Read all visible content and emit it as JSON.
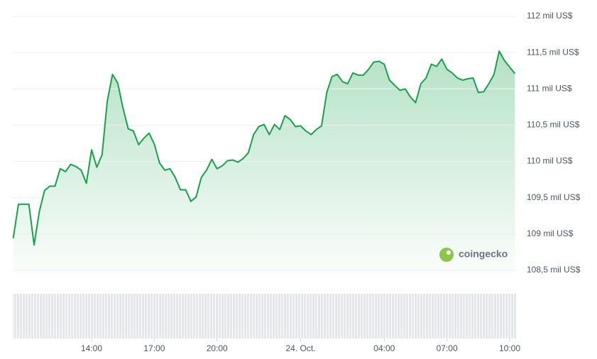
{
  "chart_data": {
    "type": "line",
    "series": [
      {
        "color": "#16a34a",
        "x": [
          10.25,
          10.5,
          10.75,
          11,
          11.25,
          11.5,
          11.75,
          12,
          12.25,
          12.5,
          12.75,
          13,
          13.25,
          13.5,
          13.75,
          14,
          14.25,
          14.5,
          14.75,
          15,
          15.25,
          15.5,
          15.75,
          16,
          16.25,
          16.5,
          16.75,
          17,
          17.25,
          17.5,
          17.75,
          18,
          18.25,
          18.5,
          18.75,
          19,
          19.25,
          19.5,
          19.75,
          20,
          20.25,
          20.5,
          20.75,
          21,
          21.25,
          21.5,
          21.75,
          22,
          22.25,
          22.5,
          22.75,
          23,
          23.25,
          23.5,
          23.75,
          24,
          24.25,
          24.5,
          24.75,
          25,
          25.25,
          25.5,
          25.75,
          26,
          26.25,
          26.5,
          26.75,
          27,
          27.25,
          27.5,
          27.75,
          28,
          28.25,
          28.5,
          28.75,
          29,
          29.25,
          29.5,
          29.75,
          30,
          30.25,
          30.5,
          30.75,
          31,
          31.25,
          31.5,
          31.75,
          32,
          32.25,
          32.5,
          32.75,
          33,
          33.25,
          33.5,
          33.75,
          34,
          34.25
        ],
        "values": [
          108.94,
          109.41,
          109.41,
          109.41,
          108.85,
          109.31,
          109.6,
          109.66,
          109.66,
          109.9,
          109.86,
          109.96,
          109.93,
          109.88,
          109.7,
          110.16,
          109.92,
          110.09,
          110.83,
          111.2,
          111.08,
          110.74,
          110.45,
          110.42,
          110.23,
          110.32,
          110.39,
          110.24,
          109.98,
          109.88,
          109.9,
          109.78,
          109.61,
          109.61,
          109.45,
          109.51,
          109.78,
          109.88,
          110.03,
          109.9,
          109.94,
          110.01,
          110.02,
          109.99,
          110.04,
          110.12,
          110.37,
          110.48,
          110.51,
          110.37,
          110.51,
          110.44,
          110.63,
          110.58,
          110.48,
          110.49,
          110.42,
          110.37,
          110.44,
          110.49,
          110.95,
          111.17,
          111.2,
          111.1,
          111.07,
          111.22,
          111.19,
          111.19,
          111.27,
          111.37,
          111.38,
          111.34,
          111.12,
          111.05,
          110.98,
          111,
          110.89,
          110.81,
          111.07,
          111.15,
          111.34,
          111.31,
          111.41,
          111.27,
          111.22,
          111.15,
          111.12,
          111.14,
          111.15,
          110.95,
          110.96,
          111.07,
          111.2,
          111.52,
          111.39,
          111.3,
          111.21
        ]
      }
    ],
    "xlim": [
      10.23,
      34.34
    ],
    "xticks": [
      {
        "value": 14,
        "label": "14:00"
      },
      {
        "value": 17,
        "label": "17:00"
      },
      {
        "value": 20,
        "label": "20:00"
      },
      {
        "value": 24,
        "label": "24. Oct."
      },
      {
        "value": 28,
        "label": "04:00"
      },
      {
        "value": 31,
        "label": "07:00"
      },
      {
        "value": 34,
        "label": "10:00"
      }
    ],
    "ylim": [
      108.5,
      112
    ],
    "yticks": [
      {
        "value": 108.5,
        "label": "108,5 mil US$"
      },
      {
        "value": 109,
        "label": "109 mil US$"
      },
      {
        "value": 109.5,
        "label": "109,5 mil US$"
      },
      {
        "value": 110,
        "label": "110 mil US$"
      },
      {
        "value": 110.5,
        "label": "110,5 mil US$"
      },
      {
        "value": 111,
        "label": "111 mil US$"
      },
      {
        "value": 111.5,
        "label": "111,5 mil US$"
      },
      {
        "value": 112,
        "label": "112 mil US$"
      }
    ],
    "grid": true,
    "watermark": "coingecko"
  }
}
